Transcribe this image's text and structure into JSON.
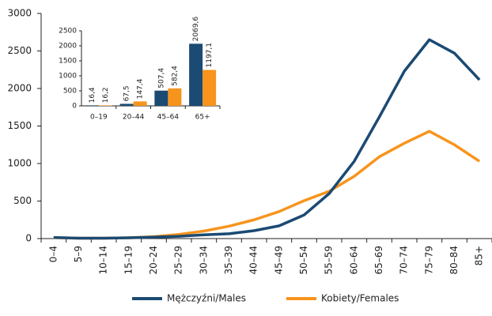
{
  "chart_data": [
    {
      "type": "line",
      "categories": [
        "0–4",
        "5–9",
        "10–14",
        "15–19",
        "20–24",
        "25–29",
        "30–34",
        "35–39",
        "40–44",
        "45–49",
        "50–54",
        "55–59",
        "60–64",
        "65–69",
        "70–74",
        "75–79",
        "80–84",
        "85+"
      ],
      "ylim": [
        0,
        3000
      ],
      "yticks": [
        0,
        500,
        1000,
        1500,
        2000,
        2500,
        3000
      ],
      "series": [
        {
          "name": "Mężczyźni/Males",
          "color": "#1b4a73",
          "values": [
            15,
            5,
            5,
            10,
            20,
            30,
            50,
            65,
            105,
            170,
            315,
            600,
            1030,
            1620,
            2230,
            2650,
            2470,
            2115
          ]
        },
        {
          "name": "Kobiety/Females",
          "color": "#f7941d",
          "values": [
            12,
            5,
            5,
            10,
            25,
            55,
            100,
            165,
            250,
            360,
            505,
            630,
            830,
            1090,
            1270,
            1430,
            1250,
            1030
          ]
        }
      ]
    },
    {
      "type": "bar",
      "categories": [
        "0–19",
        "20–44",
        "45–64",
        "65+"
      ],
      "ylim": [
        0,
        2500
      ],
      "yticks": [
        0,
        500,
        1000,
        1500,
        2000,
        2500
      ],
      "series": [
        {
          "color": "#1b4a73",
          "values": [
            16.4,
            67.5,
            507.4,
            2069.6
          ],
          "value_labels": [
            "16,4",
            "67,5",
            "507,4",
            "2069,6"
          ]
        },
        {
          "color": "#f7941d",
          "values": [
            16.2,
            147.4,
            582.4,
            1197.1
          ],
          "value_labels": [
            "16,2",
            "147,4",
            "582,4",
            "1197,1"
          ]
        }
      ]
    }
  ]
}
